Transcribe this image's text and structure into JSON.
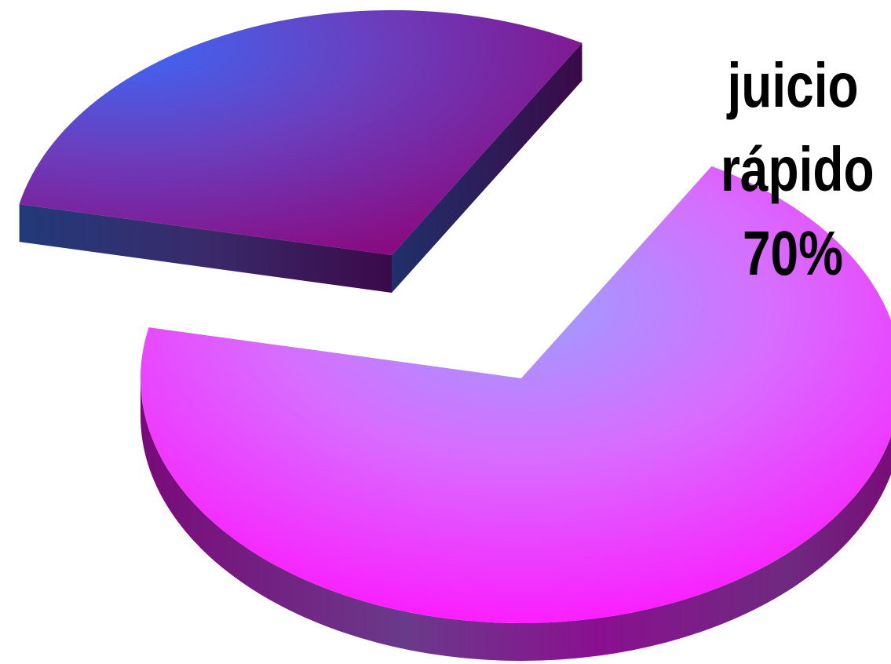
{
  "chart_data": {
    "type": "pie",
    "title": "",
    "three_d": true,
    "exploded": true,
    "series": [
      {
        "values": [
          70,
          30
        ],
        "colors": [
          "#ff1aff",
          "#5a3cc8"
        ]
      }
    ],
    "slices": [
      {
        "label": "juicio rápido",
        "value": 70,
        "value_label": "70%",
        "color": "#ff1aff",
        "label_lines": [
          "juicio",
          "rápido",
          "70%"
        ]
      },
      {
        "label": "",
        "value": 30,
        "color": "#5a3cc8"
      }
    ],
    "legend": false,
    "grid": false
  }
}
